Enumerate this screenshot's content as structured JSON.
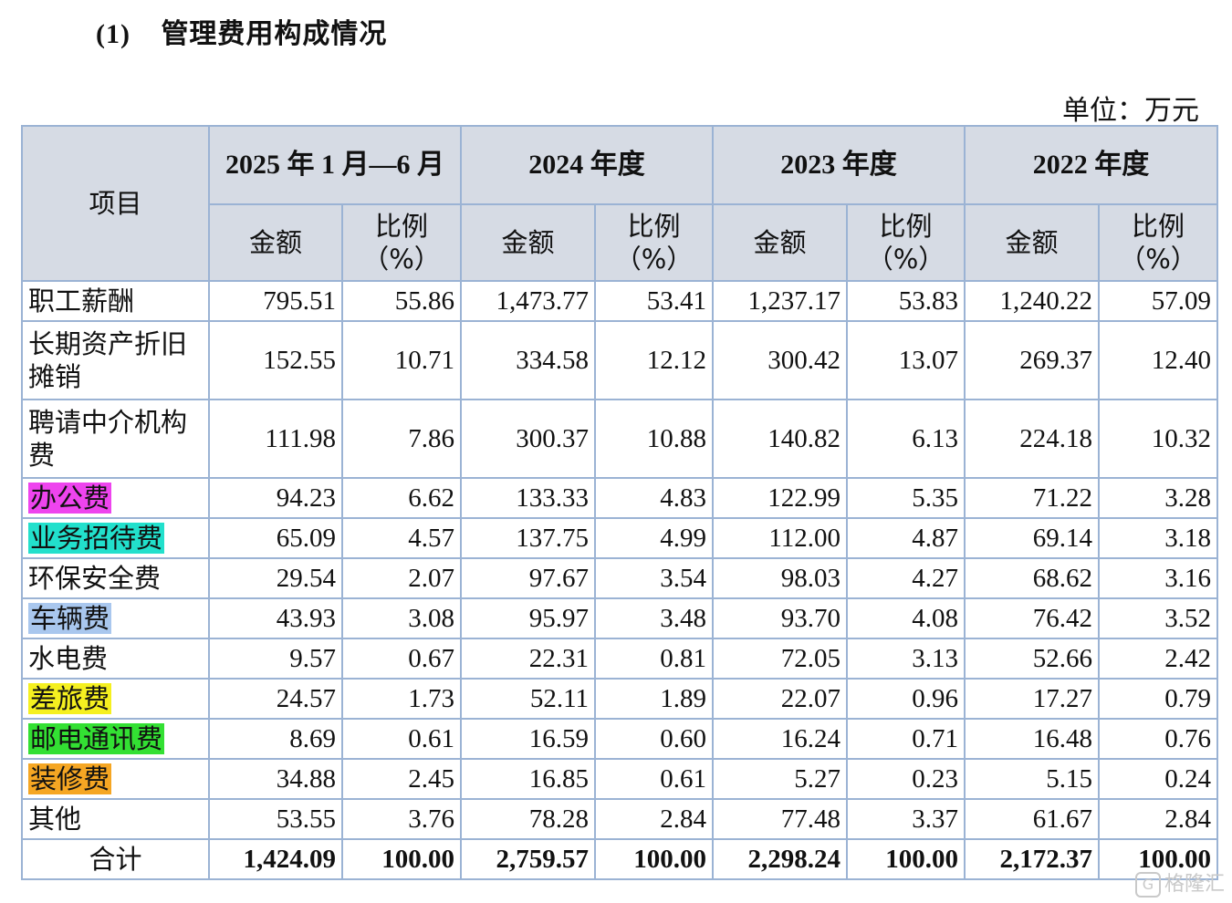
{
  "heading": {
    "number": "(1)",
    "title": "管理费用构成情况"
  },
  "unit": "单位：万元",
  "table": {
    "item_header": "项目",
    "periods": [
      "2025 年 1 月—6 月",
      "2024 年度",
      "2023 年度",
      "2022 年度"
    ],
    "amount_header": "金额",
    "ratio_header": "比例（%）",
    "rows": [
      {
        "item": "职工薪酬",
        "values": [
          "795.51",
          "55.86",
          "1,473.77",
          "53.41",
          "1,237.17",
          "53.83",
          "1,240.22",
          "57.09"
        ]
      },
      {
        "item": "长期资产折旧摊销",
        "values": [
          "152.55",
          "10.71",
          "334.58",
          "12.12",
          "300.42",
          "13.07",
          "269.37",
          "12.40"
        ]
      },
      {
        "item": "聘请中介机构费",
        "values": [
          "111.98",
          "7.86",
          "300.37",
          "10.88",
          "140.82",
          "6.13",
          "224.18",
          "10.32"
        ]
      },
      {
        "item": "办公费",
        "highlight": "#ee44ee",
        "values": [
          "94.23",
          "6.62",
          "133.33",
          "4.83",
          "122.99",
          "5.35",
          "71.22",
          "3.28"
        ]
      },
      {
        "item": "业务招待费",
        "highlight": "#22e0cc",
        "values": [
          "65.09",
          "4.57",
          "137.75",
          "4.99",
          "112.00",
          "4.87",
          "69.14",
          "3.18"
        ]
      },
      {
        "item": "环保安全费",
        "values": [
          "29.54",
          "2.07",
          "97.67",
          "3.54",
          "98.03",
          "4.27",
          "68.62",
          "3.16"
        ]
      },
      {
        "item": "车辆费",
        "highlight": "#a9c7ee",
        "values": [
          "43.93",
          "3.08",
          "95.97",
          "3.48",
          "93.70",
          "4.08",
          "76.42",
          "3.52"
        ]
      },
      {
        "item": "水电费",
        "values": [
          "9.57",
          "0.67",
          "22.31",
          "0.81",
          "72.05",
          "3.13",
          "52.66",
          "2.42"
        ]
      },
      {
        "item": "差旅费",
        "highlight": "#f5f020",
        "values": [
          "24.57",
          "1.73",
          "52.11",
          "1.89",
          "22.07",
          "0.96",
          "17.27",
          "0.79"
        ]
      },
      {
        "item": "邮电通讯费",
        "highlight": "#33e033",
        "values": [
          "8.69",
          "0.61",
          "16.59",
          "0.60",
          "16.24",
          "0.71",
          "16.48",
          "0.76"
        ]
      },
      {
        "item": "装修费",
        "highlight": "#f5a623",
        "values": [
          "34.88",
          "2.45",
          "16.85",
          "0.61",
          "5.27",
          "0.23",
          "5.15",
          "0.24"
        ]
      },
      {
        "item": "其他",
        "values": [
          "53.55",
          "3.76",
          "78.28",
          "2.84",
          "77.48",
          "3.37",
          "61.67",
          "2.84"
        ]
      }
    ],
    "total": {
      "item": "合计",
      "values": [
        "1,424.09",
        "100.00",
        "2,759.57",
        "100.00",
        "2,298.24",
        "100.00",
        "2,172.37",
        "100.00"
      ]
    }
  },
  "watermark": {
    "icon": "gelonghui-logo-icon",
    "text": "格隆汇"
  }
}
